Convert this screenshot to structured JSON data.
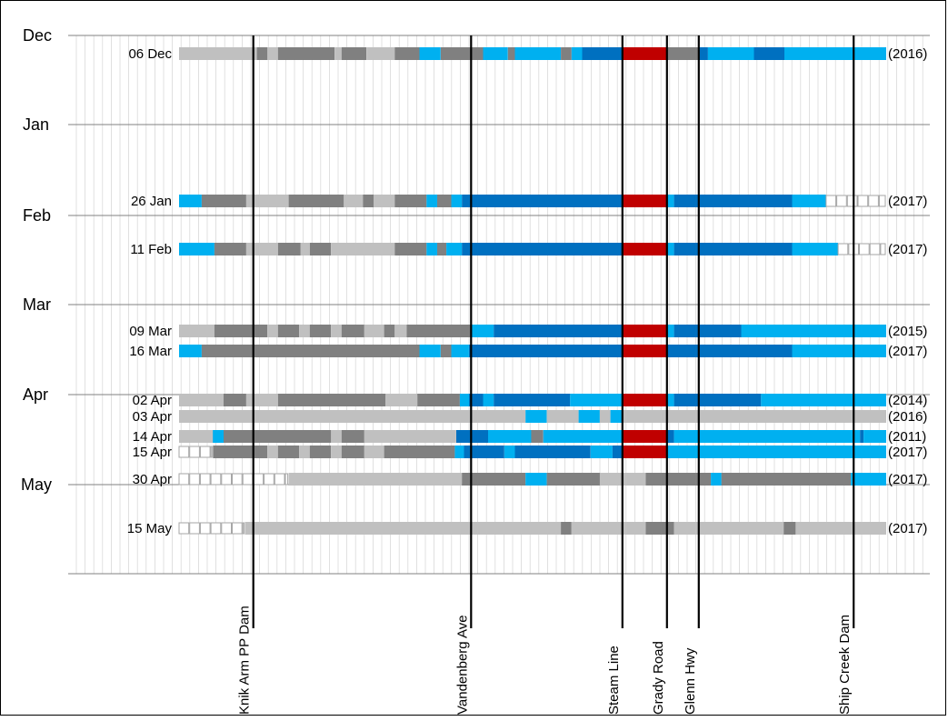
{
  "chart_data": {
    "type": "timeline-strips",
    "title": "",
    "months": [
      "Dec",
      "Jan",
      "Feb",
      "Mar",
      "Apr",
      "May"
    ],
    "colors": {
      "L": "#c0c0c0",
      "G": "#808080",
      "C": "#00b0f0",
      "B": "#0070c0",
      "R": "#c00000",
      "E": "#ffffff",
      "gridline": "#d9d9d9",
      "month_line": "#808080"
    },
    "category_names": {
      "L": "light grey",
      "G": "dark grey",
      "C": "light blue",
      "B": "dark blue",
      "R": "red",
      "E": "empty box"
    },
    "landmarks": [
      {
        "label": "Knik Arm PP Dam",
        "position": 0.105
      },
      {
        "label": "Vandenberg Ave",
        "position": 0.413
      },
      {
        "label": "Steam Line",
        "position": 0.627
      },
      {
        "label": "Grady Road",
        "position": 0.69
      },
      {
        "label": "Glenn Hwy",
        "position": 0.735
      },
      {
        "label": "Ship Creek Dam",
        "position": 0.954
      }
    ],
    "rows": [
      {
        "date": "06 Dec",
        "year": "(2016)",
        "segments": [
          [
            "L",
            0,
            0.11
          ],
          [
            "G",
            0.11,
            0.125
          ],
          [
            "L",
            0.125,
            0.14
          ],
          [
            "G",
            0.14,
            0.22
          ],
          [
            "L",
            0.22,
            0.23
          ],
          [
            "G",
            0.23,
            0.265
          ],
          [
            "L",
            0.265,
            0.305
          ],
          [
            "G",
            0.305,
            0.34
          ],
          [
            "C",
            0.34,
            0.37
          ],
          [
            "G",
            0.37,
            0.43
          ],
          [
            "C",
            0.43,
            0.465
          ],
          [
            "G",
            0.465,
            0.475
          ],
          [
            "C",
            0.475,
            0.54
          ],
          [
            "G",
            0.54,
            0.555
          ],
          [
            "C",
            0.555,
            0.57
          ],
          [
            "B",
            0.57,
            0.627
          ],
          [
            "R",
            0.627,
            0.69
          ],
          [
            "G",
            0.69,
            0.735
          ],
          [
            "B",
            0.735,
            0.748
          ],
          [
            "C",
            0.748,
            0.813
          ],
          [
            "B",
            0.813,
            0.856
          ],
          [
            "C",
            0.856,
            1
          ]
        ]
      },
      {
        "date": "26 Jan",
        "year": "(2017)",
        "segments": [
          [
            "C",
            0,
            0.032
          ],
          [
            "G",
            0.032,
            0.095
          ],
          [
            "L",
            0.095,
            0.155
          ],
          [
            "G",
            0.155,
            0.233
          ],
          [
            "L",
            0.233,
            0.26
          ],
          [
            "G",
            0.26,
            0.275
          ],
          [
            "L",
            0.275,
            0.305
          ],
          [
            "G",
            0.305,
            0.35
          ],
          [
            "C",
            0.35,
            0.365
          ],
          [
            "G",
            0.365,
            0.385
          ],
          [
            "C",
            0.385,
            0.4
          ],
          [
            "B",
            0.4,
            0.627
          ],
          [
            "R",
            0.627,
            0.69
          ],
          [
            "C",
            0.69,
            0.7
          ],
          [
            "B",
            0.7,
            0.867
          ],
          [
            "C",
            0.867,
            0.915
          ],
          [
            "E",
            0.915,
            1
          ]
        ]
      },
      {
        "date": "11 Feb",
        "year": "(2017)",
        "segments": [
          [
            "C",
            0,
            0.05
          ],
          [
            "G",
            0.05,
            0.095
          ],
          [
            "L",
            0.095,
            0.14
          ],
          [
            "G",
            0.14,
            0.172
          ],
          [
            "L",
            0.172,
            0.185
          ],
          [
            "G",
            0.185,
            0.215
          ],
          [
            "L",
            0.215,
            0.305
          ],
          [
            "G",
            0.305,
            0.35
          ],
          [
            "C",
            0.35,
            0.365
          ],
          [
            "G",
            0.365,
            0.378
          ],
          [
            "C",
            0.378,
            0.4
          ],
          [
            "B",
            0.4,
            0.627
          ],
          [
            "R",
            0.627,
            0.69
          ],
          [
            "C",
            0.69,
            0.7
          ],
          [
            "B",
            0.7,
            0.867
          ],
          [
            "C",
            0.867,
            0.932
          ],
          [
            "E",
            0.932,
            1
          ]
        ]
      },
      {
        "date": "09 Mar",
        "year": "(2015)",
        "segments": [
          [
            "L",
            0,
            0.05
          ],
          [
            "G",
            0.05,
            0.125
          ],
          [
            "L",
            0.125,
            0.14
          ],
          [
            "G",
            0.14,
            0.17
          ],
          [
            "L",
            0.17,
            0.185
          ],
          [
            "G",
            0.185,
            0.215
          ],
          [
            "L",
            0.215,
            0.23
          ],
          [
            "G",
            0.23,
            0.262
          ],
          [
            "L",
            0.262,
            0.29
          ],
          [
            "G",
            0.29,
            0.305
          ],
          [
            "L",
            0.305,
            0.322
          ],
          [
            "G",
            0.322,
            0.413
          ],
          [
            "C",
            0.413,
            0.445
          ],
          [
            "B",
            0.445,
            0.627
          ],
          [
            "R",
            0.627,
            0.69
          ],
          [
            "C",
            0.69,
            0.7
          ],
          [
            "B",
            0.7,
            0.795
          ],
          [
            "C",
            0.795,
            1
          ]
        ]
      },
      {
        "date": "16 Mar",
        "year": "(2017)",
        "segments": [
          [
            "C",
            0,
            0.032
          ],
          [
            "G",
            0.032,
            0.34
          ],
          [
            "C",
            0.34,
            0.37
          ],
          [
            "G",
            0.37,
            0.385
          ],
          [
            "C",
            0.385,
            0.41
          ],
          [
            "B",
            0.41,
            0.627
          ],
          [
            "R",
            0.627,
            0.69
          ],
          [
            "B",
            0.69,
            0.867
          ],
          [
            "C",
            0.867,
            1
          ]
        ]
      },
      {
        "date": "02 Apr",
        "year": "(2014)",
        "segments": [
          [
            "L",
            0,
            0.063
          ],
          [
            "G",
            0.063,
            0.095
          ],
          [
            "L",
            0.095,
            0.14
          ],
          [
            "G",
            0.14,
            0.292
          ],
          [
            "L",
            0.292,
            0.337
          ],
          [
            "G",
            0.337,
            0.397
          ],
          [
            "C",
            0.397,
            0.41
          ],
          [
            "B",
            0.41,
            0.43
          ],
          [
            "C",
            0.43,
            0.445
          ],
          [
            "B",
            0.445,
            0.553
          ],
          [
            "C",
            0.553,
            0.627
          ],
          [
            "R",
            0.627,
            0.69
          ],
          [
            "C",
            0.69,
            0.7
          ],
          [
            "B",
            0.7,
            0.823
          ],
          [
            "C",
            0.823,
            1
          ]
        ]
      },
      {
        "date": "03 Apr",
        "year": "(2016)",
        "segments": [
          [
            "L",
            0,
            0.49
          ],
          [
            "C",
            0.49,
            0.52
          ],
          [
            "L",
            0.52,
            0.565
          ],
          [
            "C",
            0.565,
            0.595
          ],
          [
            "L",
            0.595,
            0.61
          ],
          [
            "C",
            0.61,
            0.627
          ],
          [
            "L",
            0.627,
            1
          ]
        ]
      },
      {
        "date": "14 Apr",
        "year": "(2011)",
        "segments": [
          [
            "L",
            0,
            0.05
          ],
          [
            "C",
            0,
            0.05
          ],
          [
            "L",
            0,
            0.048
          ],
          [
            "C",
            0.048,
            0.063
          ],
          [
            "G",
            0.063,
            0.215
          ],
          [
            "L",
            0.215,
            0.23
          ],
          [
            "G",
            0.23,
            0.262
          ],
          [
            "L",
            0.262,
            0.392
          ],
          [
            "B",
            0.392,
            0.403
          ],
          [
            "B",
            0.403,
            0.437
          ],
          [
            "C",
            0.437,
            0.498
          ],
          [
            "G",
            0.498,
            0.515
          ],
          [
            "C",
            0.515,
            0.627
          ],
          [
            "R",
            0.627,
            0.69
          ],
          [
            "B",
            0.69,
            0.7
          ],
          [
            "C",
            0.7,
            0.963
          ],
          [
            "B",
            0.963,
            0.968
          ],
          [
            "C",
            0.968,
            1
          ]
        ]
      },
      {
        "date": "15 Apr",
        "year": "(2017)",
        "segments": [
          [
            "E",
            0,
            0.048
          ],
          [
            "G",
            0.048,
            0.125
          ],
          [
            "L",
            0.125,
            0.14
          ],
          [
            "G",
            0.14,
            0.17
          ],
          [
            "L",
            0.17,
            0.185
          ],
          [
            "G",
            0.185,
            0.215
          ],
          [
            "L",
            0.215,
            0.23
          ],
          [
            "G",
            0.23,
            0.262
          ],
          [
            "L",
            0.262,
            0.29
          ],
          [
            "G",
            0.29,
            0.39
          ],
          [
            "C",
            0.39,
            0.403
          ],
          [
            "B",
            0.403,
            0.46
          ],
          [
            "C",
            0.46,
            0.475
          ],
          [
            "B",
            0.475,
            0.582
          ],
          [
            "C",
            0.582,
            0.613
          ],
          [
            "B",
            0.613,
            0.627
          ],
          [
            "R",
            0.627,
            0.69
          ],
          [
            "C",
            0.69,
            1
          ]
        ]
      },
      {
        "date": "30 Apr",
        "year": "(2017)",
        "segments": [
          [
            "E",
            0,
            0.155
          ],
          [
            "L",
            0.155,
            0.4
          ],
          [
            "G",
            0.4,
            0.49
          ],
          [
            "C",
            0.49,
            0.52
          ],
          [
            "G",
            0.52,
            0.595
          ],
          [
            "L",
            0.595,
            0.66
          ],
          [
            "G",
            0.66,
            0.752
          ],
          [
            "C",
            0.752,
            0.767
          ],
          [
            "G",
            0.767,
            0.95
          ],
          [
            "C",
            0.95,
            1
          ]
        ]
      },
      {
        "date": "15 May",
        "year": "(2017)",
        "segments": [
          [
            "E",
            0,
            0.093
          ],
          [
            "L",
            0.093,
            0.54
          ],
          [
            "G",
            0.54,
            0.555
          ],
          [
            "L",
            0.555,
            0.66
          ],
          [
            "G",
            0.66,
            0.7
          ],
          [
            "L",
            0.7,
            0.855
          ],
          [
            "G",
            0.855,
            0.872
          ],
          [
            "L",
            0.872,
            1
          ]
        ]
      }
    ]
  }
}
